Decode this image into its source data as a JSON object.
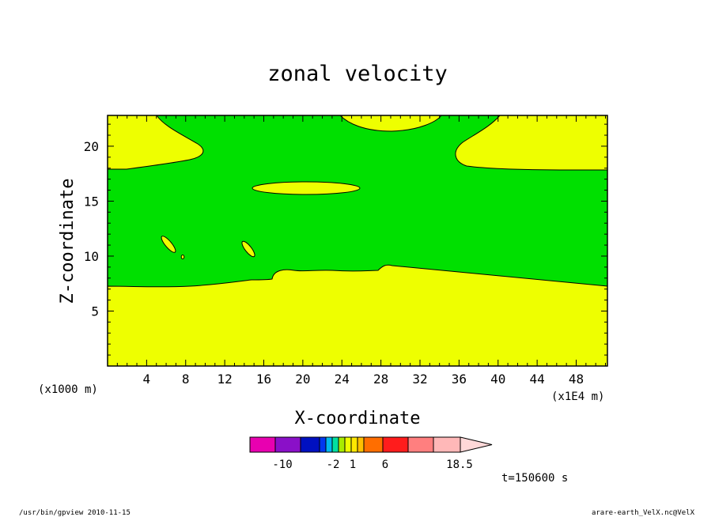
{
  "chart_data": {
    "type": "contour",
    "title": "zonal velocity",
    "xlabel": "X-coordinate",
    "ylabel": "Z-coordinate",
    "x_unit_left": "(x1000 m)",
    "x_unit_right": "(x1E4 m)",
    "xlim": [
      0,
      51.2
    ],
    "ylim": [
      0,
      22.8
    ],
    "x_ticks": [
      "4",
      "8",
      "12",
      "16",
      "20",
      "24",
      "28",
      "32",
      "36",
      "40",
      "44",
      "48"
    ],
    "y_ticks": [
      "5",
      "10",
      "15",
      "20"
    ],
    "regions": [
      {
        "name": "yellow",
        "color": "#eeff00"
      },
      {
        "name": "green",
        "color": "#00e000"
      }
    ],
    "colorbar": {
      "colors": [
        "#e800b0",
        "#8a10c8",
        "#0010c0",
        "#0038f0",
        "#00b8f0",
        "#00e0a0",
        "#a8ec00",
        "#eeff00",
        "#ffe800",
        "#ffc000",
        "#ff6e00",
        "#ff1c1c",
        "#ff7f7f",
        "#ffb8b8",
        "#ffd8d8"
      ],
      "tick_labels": [
        "-10",
        "-2",
        "1",
        "6",
        "18.5"
      ]
    },
    "time_label": "t=150600 s"
  },
  "footer": {
    "left": "/usr/bin/gpview  2010-11-15",
    "right": "arare-earth_VelX.nc@VelX"
  }
}
